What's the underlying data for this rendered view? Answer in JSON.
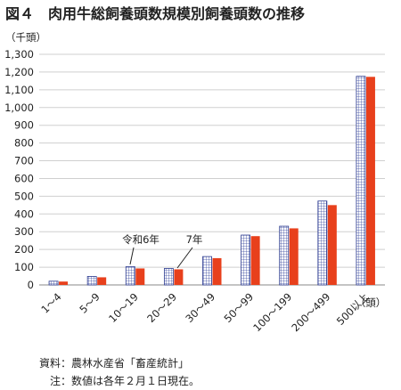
{
  "chart_data": {
    "type": "bar",
    "title": "図４　肉用牛総飼養頭数規模別飼養頭数の推移",
    "y_unit": "（千頭）",
    "x_unit": "（頭）",
    "ylim": [
      0,
      1300
    ],
    "y_ticks": [
      "0",
      "100",
      "200",
      "300",
      "400",
      "500",
      "600",
      "700",
      "800",
      "900",
      "1,000",
      "1,100",
      "1,200",
      "1,300"
    ],
    "grid": true,
    "categories": [
      "1～4",
      "5～9",
      "10～19",
      "20～29",
      "30～49",
      "50～99",
      "100～199",
      "200～499",
      "500以上"
    ],
    "series": [
      {
        "name": "令和6年",
        "values": [
          21,
          48,
          103,
          93,
          160,
          281,
          331,
          473,
          1176
        ],
        "color": "#2b3a8f"
      },
      {
        "name": "7年",
        "values": [
          19,
          43,
          93,
          88,
          151,
          275,
          319,
          450,
          1173
        ],
        "color": "#e8401c"
      }
    ],
    "annotations": {
      "r6_label": "令和6年",
      "r7_label": "7年"
    },
    "source": "資料：農林水産省「畜産統計」",
    "note": "注：数値は各年２月１日現在。"
  }
}
